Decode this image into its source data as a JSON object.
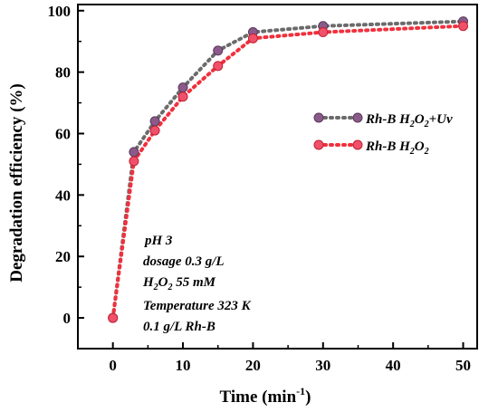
{
  "chart_data": {
    "type": "line",
    "xlabel": "Time (min",
    "xlabel_sup": "-1",
    "xlabel_end": ")",
    "ylabel": "Degradation efficiency (%)",
    "xlim": [
      -5,
      52
    ],
    "ylim": [
      -10,
      102
    ],
    "x_ticks": [
      0,
      10,
      20,
      30,
      40,
      50
    ],
    "y_ticks": [
      0,
      20,
      40,
      60,
      80,
      100
    ],
    "grid": false,
    "legend_position": "center-right",
    "series": [
      {
        "key": "uv",
        "label_main": "Rh-B H",
        "label_sub": "2",
        "label_mid": "O",
        "label_sub2": "2",
        "label_end": "+Uv",
        "color": "#6b6b6b",
        "marker_color": "#8a5a8a",
        "x": [
          0,
          3,
          6,
          10,
          15,
          20,
          30,
          50
        ],
        "y": [
          0,
          54,
          64,
          75,
          87,
          93,
          95,
          96.5
        ]
      },
      {
        "key": "h2o2",
        "label_main": "Rh-B H",
        "label_sub": "2",
        "label_mid": "O",
        "label_sub2": "2",
        "label_end": "",
        "color": "#f0303c",
        "marker_color": "#f0506a",
        "x": [
          0,
          3,
          6,
          10,
          15,
          20,
          30,
          50
        ],
        "y": [
          0,
          51,
          61,
          72,
          82,
          91,
          93,
          95
        ]
      }
    ],
    "annotations": {
      "line1": "pH 3",
      "line2": "dosage  0.3 g/L",
      "line3_pre": "H",
      "line3_sub1": "2",
      "line3_mid": "O",
      "line3_sub2": "2",
      "line3_post": " 55 mM",
      "line4": "Temperature 323 K",
      "line5": "0.1 g/L Rh-B"
    }
  }
}
